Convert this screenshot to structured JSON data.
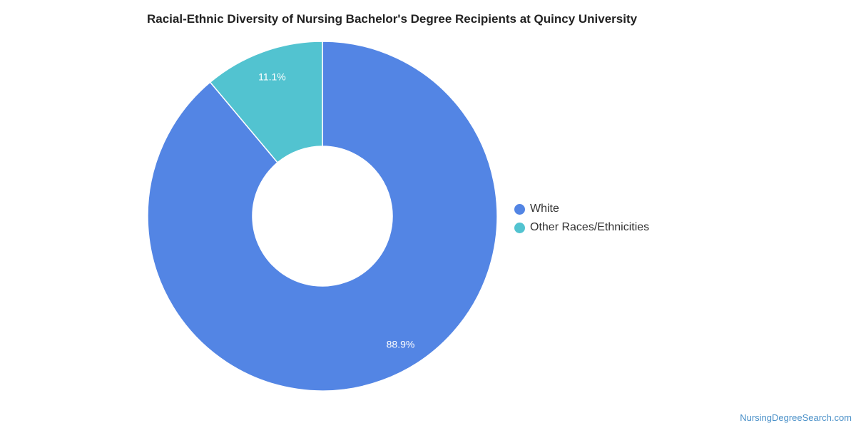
{
  "chart_data": {
    "type": "pie",
    "title": "Racial-Ethnic Diversity of Nursing Bachelor's Degree Recipients at Quincy University",
    "slices": [
      {
        "name": "White",
        "value": 88.9,
        "label": "88.9%",
        "color": "#5385e4"
      },
      {
        "name": "Other Races/Ethnicities",
        "value": 11.1,
        "label": "11.1%",
        "color": "#52c3d0"
      }
    ],
    "donut": true,
    "legend_position": "right"
  },
  "source": {
    "text": "NursingDegreeSearch.com"
  }
}
